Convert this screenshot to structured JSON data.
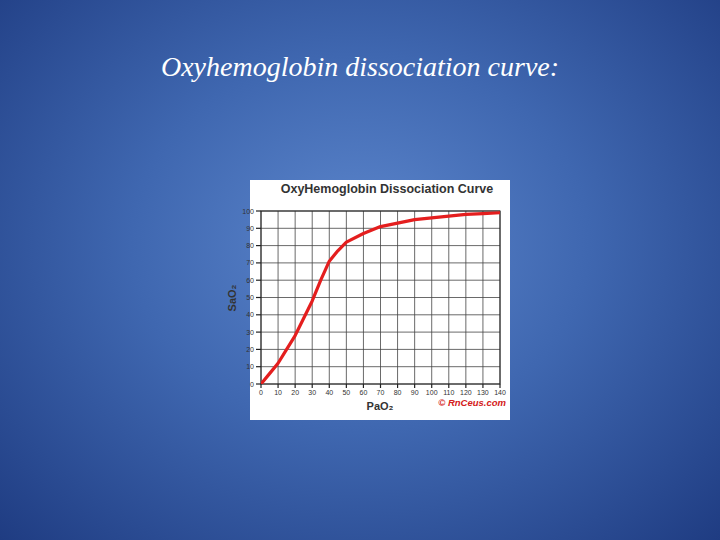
{
  "page": {
    "title": "Oxyhemoglobin dissociation curve:"
  },
  "chart_data": {
    "type": "line",
    "title": "OxyHemoglobin Dissociation Curve",
    "x_label": "PaO₂",
    "y_label": "SaO₂",
    "x": [
      0,
      5,
      10,
      15,
      20,
      25,
      30,
      35,
      40,
      45,
      50,
      60,
      70,
      80,
      90,
      100,
      110,
      120,
      130,
      140
    ],
    "values": [
      0,
      6,
      12,
      20,
      28,
      38,
      48,
      60,
      71,
      77,
      82,
      87,
      91,
      93,
      95,
      96,
      97,
      98,
      98.5,
      99
    ],
    "color": "#e41e1e",
    "xlim": [
      0,
      140
    ],
    "xticks": [
      0,
      10,
      20,
      30,
      40,
      50,
      60,
      70,
      80,
      90,
      100,
      110,
      120,
      130,
      140
    ],
    "ylim": [
      0,
      100
    ],
    "yticks": [
      0,
      10,
      20,
      30,
      40,
      50,
      60,
      70,
      80,
      90,
      100
    ],
    "grid": true,
    "annotations": [
      "© RnCeus.com"
    ]
  }
}
